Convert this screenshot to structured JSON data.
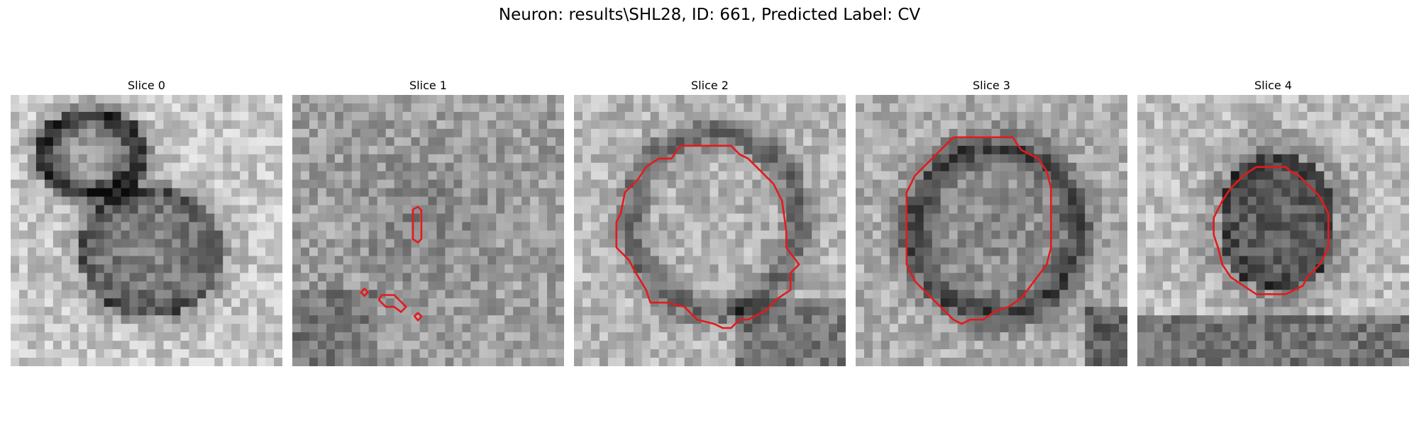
{
  "figure_title": "Neuron: results\\SHL28, ID: 661, Predicted Label: CV",
  "contour_color": "#e41a1c",
  "panels": [
    {
      "title": "Slice 0"
    },
    {
      "title": "Slice 1"
    },
    {
      "title": "Slice 2"
    },
    {
      "title": "Slice 3"
    },
    {
      "title": "Slice 4"
    }
  ]
}
